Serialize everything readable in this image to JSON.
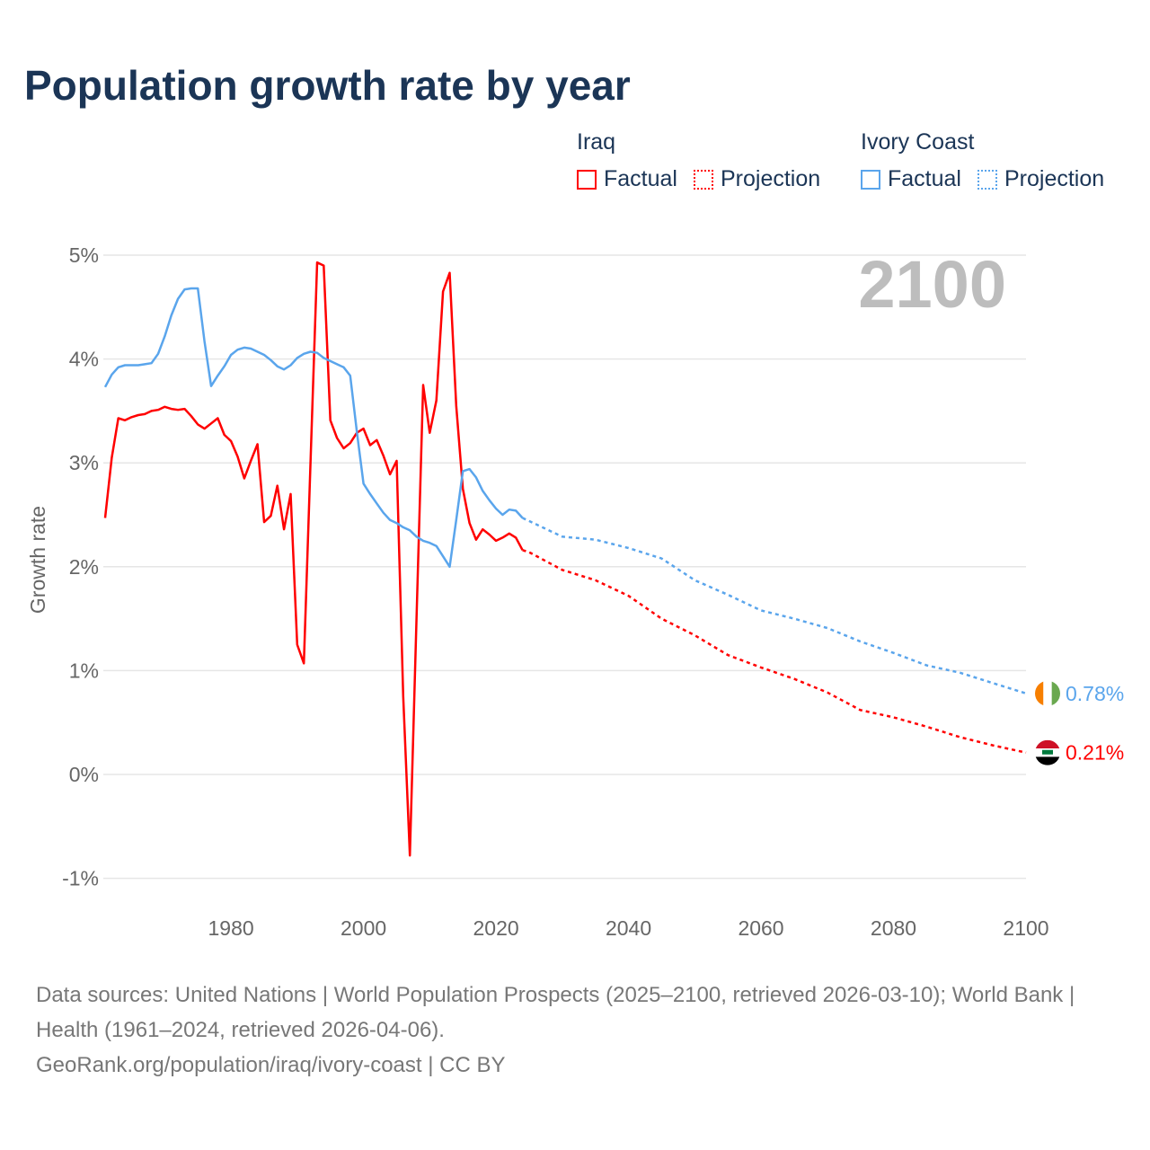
{
  "chart_data": {
    "type": "line",
    "title": "Population growth rate by year",
    "ylabel": "Growth rate",
    "xlabel": "",
    "xlim": [
      1961,
      2100
    ],
    "ylim": [
      -1.1,
      5.1
    ],
    "yticks": [
      -1,
      0,
      1,
      2,
      3,
      4,
      5
    ],
    "ytick_labels": [
      "-1%",
      "0%",
      "1%",
      "2%",
      "3%",
      "4%",
      "5%"
    ],
    "xticks": [
      1980,
      2000,
      2020,
      2040,
      2060,
      2080,
      2100
    ],
    "xtick_labels": [
      "1980",
      "2000",
      "2020",
      "2040",
      "2060",
      "2080",
      "2100"
    ],
    "year_label": "2100",
    "legend": {
      "placement": "top-right",
      "groups": [
        {
          "name": "Iraq",
          "items": [
            "Factual",
            "Projection"
          ],
          "color": "#ff0000"
        },
        {
          "name": "Ivory Coast",
          "items": [
            "Factual",
            "Projection"
          ],
          "color": "#5aa5ec"
        }
      ]
    },
    "series": [
      {
        "name": "Iraq",
        "color": "#ff0000",
        "end_label": "0.21%",
        "factual": {
          "x": [
            1961,
            1962,
            1963,
            1964,
            1965,
            1966,
            1967,
            1968,
            1969,
            1970,
            1971,
            1972,
            1973,
            1974,
            1975,
            1976,
            1977,
            1978,
            1979,
            1980,
            1981,
            1982,
            1983,
            1984,
            1985,
            1986,
            1987,
            1988,
            1989,
            1990,
            1991,
            1992,
            1993,
            1994,
            1995,
            1996,
            1997,
            1998,
            1999,
            2000,
            2001,
            2002,
            2003,
            2004,
            2005,
            2006,
            2007,
            2008,
            2009,
            2010,
            2011,
            2012,
            2013,
            2014,
            2015,
            2016,
            2017,
            2018,
            2019,
            2020,
            2021,
            2022,
            2023,
            2024
          ],
          "y": [
            2.47,
            3.05,
            3.43,
            3.41,
            3.44,
            3.46,
            3.47,
            3.5,
            3.51,
            3.54,
            3.52,
            3.51,
            3.52,
            3.45,
            3.37,
            3.33,
            3.38,
            3.43,
            3.27,
            3.21,
            3.06,
            2.85,
            3.02,
            3.18,
            2.43,
            2.49,
            2.78,
            2.36,
            2.7,
            1.25,
            1.07,
            3.0,
            4.93,
            4.9,
            3.41,
            3.24,
            3.14,
            3.19,
            3.29,
            3.33,
            3.17,
            3.22,
            3.07,
            2.89,
            3.02,
            0.75,
            -0.78,
            1.5,
            3.75,
            3.29,
            3.6,
            4.65,
            4.83,
            3.55,
            2.75,
            2.42,
            2.26,
            2.36,
            2.31,
            2.25,
            2.28,
            2.32,
            2.28,
            2.16
          ]
        },
        "projection": {
          "x": [
            2024,
            2025,
            2030,
            2035,
            2040,
            2045,
            2050,
            2055,
            2060,
            2065,
            2070,
            2075,
            2080,
            2085,
            2090,
            2095,
            2100
          ],
          "y": [
            2.16,
            2.14,
            1.97,
            1.87,
            1.72,
            1.5,
            1.34,
            1.15,
            1.03,
            0.92,
            0.79,
            0.62,
            0.55,
            0.46,
            0.36,
            0.28,
            0.21
          ]
        }
      },
      {
        "name": "Ivory Coast",
        "color": "#5aa5ec",
        "end_label": "0.78%",
        "factual": {
          "x": [
            1961,
            1962,
            1963,
            1964,
            1965,
            1966,
            1967,
            1968,
            1969,
            1970,
            1971,
            1972,
            1973,
            1974,
            1975,
            1976,
            1977,
            1978,
            1979,
            1980,
            1981,
            1982,
            1983,
            1984,
            1985,
            1986,
            1987,
            1988,
            1989,
            1990,
            1991,
            1992,
            1993,
            1994,
            1995,
            1996,
            1997,
            1998,
            1999,
            2000,
            2001,
            2002,
            2003,
            2004,
            2005,
            2006,
            2007,
            2008,
            2009,
            2010,
            2011,
            2012,
            2013,
            2014,
            2015,
            2016,
            2017,
            2018,
            2019,
            2020,
            2021,
            2022,
            2023,
            2024
          ],
          "y": [
            3.73,
            3.85,
            3.92,
            3.94,
            3.94,
            3.94,
            3.95,
            3.96,
            4.05,
            4.22,
            4.42,
            4.58,
            4.67,
            4.68,
            4.68,
            4.17,
            3.74,
            3.84,
            3.93,
            4.04,
            4.09,
            4.11,
            4.1,
            4.07,
            4.04,
            3.99,
            3.93,
            3.9,
            3.94,
            4.01,
            4.05,
            4.07,
            4.06,
            4.01,
            3.98,
            3.95,
            3.92,
            3.84,
            3.3,
            2.8,
            2.7,
            2.61,
            2.52,
            2.45,
            2.42,
            2.38,
            2.35,
            2.29,
            2.25,
            2.23,
            2.2,
            2.1,
            2.0,
            2.45,
            2.92,
            2.94,
            2.86,
            2.73,
            2.64,
            2.56,
            2.5,
            2.55,
            2.54,
            2.47
          ]
        },
        "projection": {
          "x": [
            2024,
            2025,
            2030,
            2035,
            2040,
            2045,
            2050,
            2055,
            2060,
            2065,
            2070,
            2075,
            2080,
            2085,
            2090,
            2095,
            2100
          ],
          "y": [
            2.47,
            2.44,
            2.29,
            2.26,
            2.18,
            2.08,
            1.87,
            1.73,
            1.58,
            1.5,
            1.41,
            1.28,
            1.17,
            1.05,
            0.98,
            0.88,
            0.78
          ]
        }
      }
    ]
  },
  "footer": {
    "sources": "Data sources: United Nations | World Population Prospects (2025–2100, retrieved 2026-03-10); World Bank | Health (1961–2024, retrieved 2026-04-06).",
    "credit": "GeoRank.org/population/iraq/ivory-coast | CC BY"
  }
}
